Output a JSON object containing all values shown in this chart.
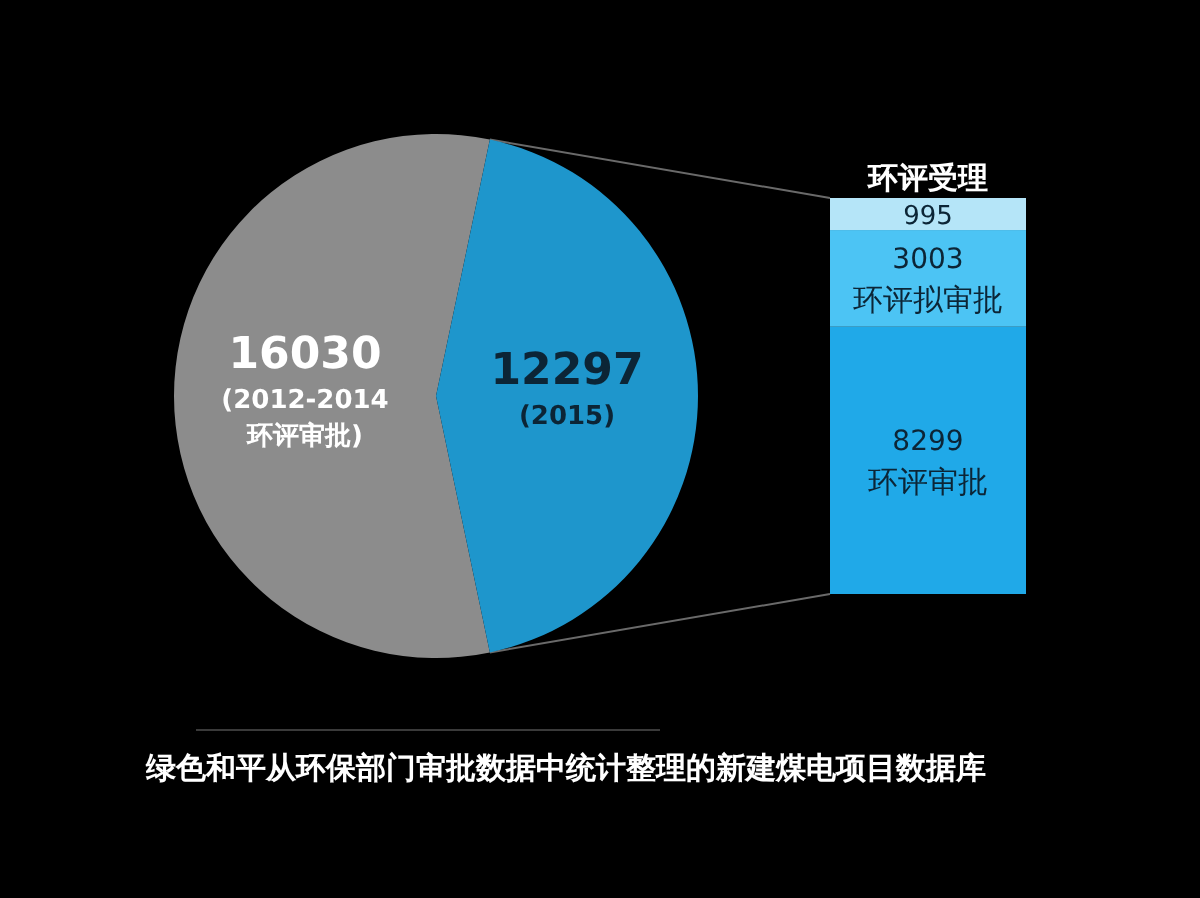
{
  "chart_data": [
    {
      "type": "pie",
      "categories": [
        "(2012-2014 环评审批)",
        "(2015)"
      ],
      "values": [
        16030,
        12297
      ],
      "colors": [
        "#8c8c8c",
        "#1e96cc"
      ],
      "data_labels": true,
      "annotations": [
        "绿色和平从环保部门审批数据中统计整理的新建煤电项目数据库"
      ]
    },
    {
      "type": "bar",
      "stacked": true,
      "categories": [
        null
      ],
      "series": [
        {
          "name": "环评审批",
          "color": "#20a9e8",
          "values": [
            8299
          ]
        },
        {
          "name": "环评拟审批",
          "color": "#4cc4f4",
          "values": [
            3003
          ]
        },
        {
          "name": "环评受理",
          "color": "#b5e5f8",
          "values": [
            995
          ]
        }
      ],
      "data_labels": true
    }
  ]
}
